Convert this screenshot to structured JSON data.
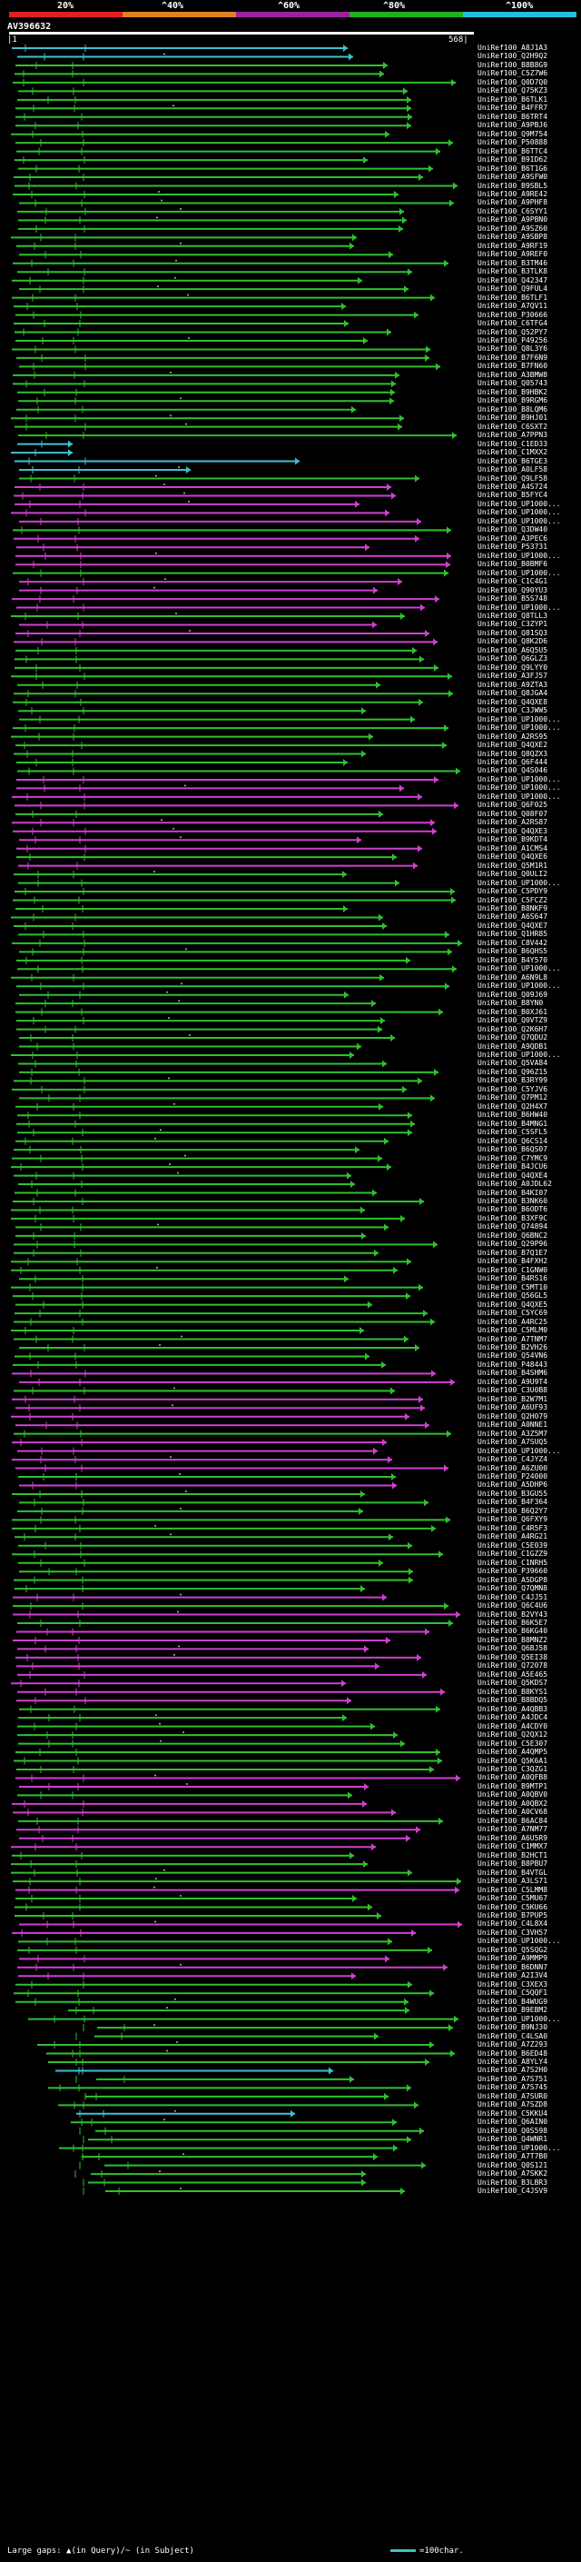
{
  "legend": {
    "labels": [
      "20%",
      "^40%",
      "^60%",
      "^80%",
      "^100%"
    ],
    "colors": [
      "#e02020",
      "#e08020",
      "#a020a0",
      "#20b020",
      "#20c0e0"
    ]
  },
  "query": {
    "name": "AV396632",
    "start": "|1",
    "end": "568|"
  },
  "footer": {
    "gaps_text": "Large gaps: ▲(in Query)/~ (in Subject)",
    "scale_text": "=100char."
  },
  "colors": {
    "green": "#30c030",
    "magenta": "#d040d0",
    "cyan": "#40c0d0",
    "tick": "#b0b0b0"
  },
  "hits": [
    "UniRef100_A8J1A3",
    "UniRef100_Q2H9Q2",
    "UniRef100_B8B8G9",
    "UniRef100_C5Z7W6",
    "UniRef100_Q0D7Q0",
    "UniRef100_Q75KZ3",
    "UniRef100_B6TLK1",
    "UniRef100_B4FFR7",
    "UniRef100_B6TRT4",
    "UniRef100_A9PBJ6",
    "UniRef100_Q9M754",
    "UniRef100_P50888",
    "UniRef100_B6TTC4",
    "UniRef100_B9ID62",
    "UniRef100_B6T1G6",
    "UniRef100_A9SFW0",
    "UniRef100_B9SBL5",
    "UniRef100_A9RE42",
    "UniRef100_A9PHF8",
    "UniRef100_C6SYY1",
    "UniRef100_A9PBN0",
    "UniRef100_A9SZ60",
    "UniRef100_A9SBP8",
    "UniRef100_A9RF19",
    "UniRef100_A9REF0",
    "UniRef100_B3TM46",
    "UniRef100_B3TLK8",
    "UniRef100_Q42347",
    "UniRef100_Q9FUL4",
    "UniRef100_B6TLF1",
    "UniRef100_A7QV11",
    "UniRef100_P30666",
    "UniRef100_C6TFG4",
    "UniRef100_Q52PY7",
    "UniRef100_P49256",
    "UniRef100_Q8L3Y6",
    "UniRef100_B7F6N9",
    "UniRef100_B7FN60",
    "UniRef100_A3BMW8",
    "UniRef100_Q05743",
    "UniRef100_B9HBK2",
    "UniRef100_B9RGM6",
    "UniRef100_B8LQM6",
    "UniRef100_B9HJ01",
    "UniRef100_C6SXT2",
    "UniRef100_A7PPN3",
    "UniRef100_C1ED33",
    "UniRef100_C1MXX2",
    "UniRef100_B6TGE3",
    "UniRef100_A0LF58",
    "UniRef100_Q9LF58",
    "UniRef100_A4S724",
    "UniRef100_B5FYC4",
    "UniRef100_UP1000...",
    "UniRef100_UP1000...",
    "UniRef100_UP1000...",
    "UniRef100_Q3DW40",
    "UniRef100_A3PEC6",
    "UniRef100_P53731",
    "UniRef100_UP1000...",
    "UniRef100_B0BMF6",
    "UniRef100_UP1000...",
    "UniRef100_C1C4G1",
    "UniRef100_Q90YU3",
    "UniRef100_B5S748",
    "UniRef100_UP1000...",
    "UniRef100_Q8TLL3",
    "UniRef100_C3ZYP1",
    "UniRef100_Q81SQ3",
    "UniRef100_Q8K2D6",
    "UniRef100_A6Q5U5",
    "UniRef100_Q6GLZ3",
    "UniRef100_Q9LYY0",
    "UniRef100_A3FJ57",
    "UniRef100_A9ZTA3",
    "UniRef100_Q8JGA4",
    "UniRef100_Q4QXE8",
    "UniRef100_C3JWW5",
    "UniRef100_UP1000...",
    "UniRef100_UP1000...",
    "UniRef100_A2RS95",
    "UniRef100_Q4QXE2",
    "UniRef100_Q8QZX3",
    "UniRef100_Q6F444",
    "UniRef100_Q4S046",
    "UniRef100_UP1000...",
    "UniRef100_UP1000...",
    "UniRef100_UP1000...",
    "UniRef100_Q6F025",
    "UniRef100_Q08F07",
    "UniRef100_A2RS87",
    "UniRef100_Q4QXE3",
    "UniRef100_B9KDT4",
    "UniRef100_A1CMS4",
    "UniRef100_Q4QXE6",
    "UniRef100_Q5M1R1",
    "UniRef100_Q0ULI2",
    "UniRef100_UP1000...",
    "UniRef100_C5PDY9",
    "UniRef100_C5FCZ2",
    "UniRef100_B8NKF9",
    "UniRef100_A6S647",
    "UniRef100_Q4QXE7",
    "UniRef100_Q1HR85",
    "UniRef100_C8V442",
    "UniRef100_B6QHS5",
    "UniRef100_B4Y570",
    "UniRef100_UP1000...",
    "UniRef100_A6N9L8",
    "UniRef100_UP1000...",
    "UniRef100_Q09J69",
    "UniRef100_B8YN0",
    "UniRef100_B0XJ61",
    "UniRef100_Q0VTZ9",
    "UniRef100_Q2K6H7",
    "UniRef100_Q7QDU2",
    "UniRef100_A9QDB1",
    "UniRef100_UP1000...",
    "UniRef100_Q5VA84",
    "UniRef100_Q96Z15",
    "UniRef100_B3RY99",
    "UniRef100_C5YJV6",
    "UniRef100_Q7PM12",
    "UniRef100_Q2H4X7",
    "UniRef100_B6HW40",
    "UniRef100_B4MNG1",
    "UniRef100_C5SFL5",
    "UniRef100_Q6CS14",
    "UniRef100_B6QS07",
    "UniRef100_C7YMC9",
    "UniRef100_B4JCU6",
    "UniRef100_Q4QXE4",
    "UniRef100_A0JDL62",
    "UniRef100_B4KI07",
    "UniRef100_B3NK60",
    "UniRef100_B6ODT6",
    "UniRef100_B3XF9C",
    "UniRef100_Q74894",
    "UniRef100_Q6BNC2",
    "UniRef100_Q29P96",
    "UniRef100_B7Q1E7",
    "UniRef100_B4FXH2",
    "UniRef100_C1GNW0",
    "UniRef100_B4RS16",
    "UniRef100_C5MT10",
    "UniRef100_Q56GL5",
    "UniRef100_Q4QXE5",
    "UniRef100_C5YC69",
    "UniRef100_A4RC25",
    "UniRef100_C5MLM0",
    "UniRef100_A7TNM7",
    "UniRef100_B2VH26",
    "UniRef100_Q54VN6",
    "UniRef100_P48443",
    "UniRef100_B4SHM6",
    "UniRef100_A9U9T4",
    "UniRef100_C3U0B8",
    "UniRef100_B2W7M1",
    "UniRef100_A6UF93",
    "UniRef100_Q2H079",
    "UniRef100_A0NNE1",
    "UniRef100_A3Z5M7",
    "UniRef100_A7SUQ5",
    "UniRef100_UP1000...",
    "UniRef100_C4JYZ4",
    "UniRef100_A6ZU00",
    "UniRef100_P24000",
    "UniRef100_A5DHP6",
    "UniRef100_B3GU55",
    "UniRef100_B4F364",
    "UniRef100_B6Q2Y7",
    "UniRef100_Q6FXY9",
    "UniRef100_C4R5F3",
    "UniRef100_A4RG21",
    "UniRef100_C5E039",
    "UniRef100_C1GZZ9",
    "UniRef100_C1NRH5",
    "UniRef100_P39660",
    "UniRef100_A5DGP8",
    "UniRef100_Q7QMN8",
    "UniRef100_C4JJ51",
    "UniRef100_Q6C4U6",
    "UniRef100_B2VY43",
    "UniRef100_B6K5E7",
    "UniRef100_B6KG40",
    "UniRef100_B8MNZ2",
    "UniRef100_Q6BJ58",
    "UniRef100_Q5EI38",
    "UniRef100_Q72078",
    "UniRef100_A5E465",
    "UniRef100_Q5KDS7",
    "UniRef100_B8KYS1",
    "UniRef100_B8BDQ5",
    "UniRef100_A4QBB3",
    "UniRef100_A4JDC4",
    "UniRef100_A4CDY0",
    "UniRef100_Q2QX12",
    "UniRef100_C5E307",
    "UniRef100_A4QMP5",
    "UniRef100_Q5K6A1",
    "UniRef100_C3QZG1",
    "UniRef100_A0QFB8",
    "UniRef100_B9MTP1",
    "UniRef100_A0QBV0",
    "UniRef100_A0QBX2",
    "UniRef100_A0CV68",
    "UniRef100_B6AC84",
    "UniRef100_A7NM77",
    "UniRef100_A6U5R9",
    "UniRef100_C1MMX7",
    "UniRef100_B2HCT1",
    "UniRef100_B8PBU7",
    "UniRef100_B4VTGL",
    "UniRef100_A3LS71",
    "UniRef100_C5LMM8",
    "UniRef100_C5MU67",
    "UniRef100_C5KU66",
    "UniRef100_B7PUP5",
    "UniRef100_C4L8X4",
    "UniRef100_C3VH57",
    "UniRef100_UP1000...",
    "UniRef100_Q5SQG2",
    "UniRef100_A9MMP9",
    "UniRef100_B6DNN7",
    "UniRef100_A2I3V4",
    "UniRef100_C3XEX3",
    "UniRef100_C5QQF1",
    "UniRef100_B4WUG9",
    "UniRef100_B9EBM2",
    "UniRef100_UP1000...",
    "UniRef100_B9NJ30",
    "UniRef100_C4LSA0",
    "UniRef100_A7Z293",
    "UniRef100_B6ED48",
    "UniRef100_A8YLY4",
    "UniRef100_A7S2H0",
    "UniRef100_A7S751",
    "UniRef100_A7S745",
    "UniRef100_A7SUR0",
    "UniRef100_A7SZD8",
    "UniRef100_C5KKU4",
    "UniRef100_Q6AIN0",
    "UniRef100_Q0S598",
    "UniRef100_Q4WNR1",
    "UniRef100_UP1000...",
    "UniRef100_A7T7B0",
    "UniRef100_Q0S121",
    "UniRef100_A7SKK2",
    "UniRef100_B3LBR3",
    "UniRef100_C4JSV9"
  ]
}
